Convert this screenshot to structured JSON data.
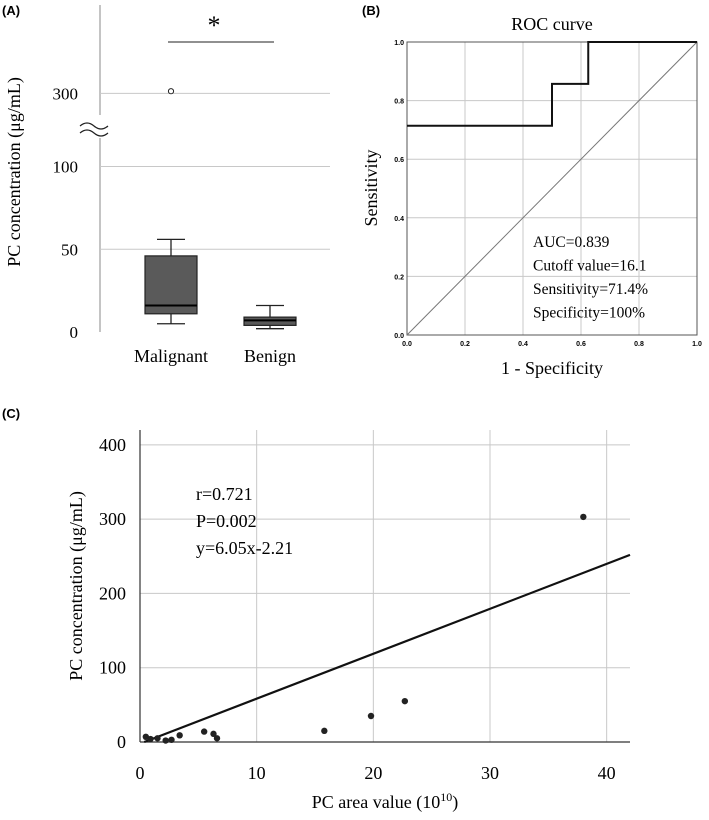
{
  "panel_labels": {
    "a": "(A)",
    "b": "(B)",
    "c": "(C)"
  },
  "chart_data": [
    {
      "id": "A",
      "type": "box",
      "ylabel": "PC concentration (μg/mL)",
      "ylim_lower": [
        0,
        110
      ],
      "ylim_upper": [
        285,
        380
      ],
      "axis_break": true,
      "ticks": [
        {
          "value": 0,
          "label": "0"
        },
        {
          "value": 50,
          "label": "50"
        },
        {
          "value": 100,
          "label": "100"
        },
        {
          "value": 300,
          "label": "300"
        }
      ],
      "categories": [
        "Malignant",
        "Benign"
      ],
      "boxes": [
        {
          "name": "Malignant",
          "whisker_low": 5,
          "q1": 11,
          "median": 16,
          "q3": 46,
          "whisker_high": 56,
          "outliers": [
            302
          ]
        },
        {
          "name": "Benign",
          "whisker_low": 2,
          "q1": 4,
          "median": 7,
          "q3": 9,
          "whisker_high": 16,
          "outliers": []
        }
      ],
      "significance": "*",
      "colors": {
        "box": "#5a5a5a",
        "grid": "#c8c8c8"
      }
    },
    {
      "id": "B",
      "type": "line",
      "title": "ROC curve",
      "xlabel": "1 - Specificity",
      "ylabel": "Sensitivity",
      "xlim": [
        0,
        1
      ],
      "ylim": [
        0,
        1
      ],
      "ticks": [
        "0.0",
        "0.2",
        "0.4",
        "0.6",
        "0.8",
        "1.0"
      ],
      "series": [
        {
          "name": "ROC",
          "points": [
            [
              0,
              0.714
            ],
            [
              0.5,
              0.714
            ],
            [
              0.5,
              0.857
            ],
            [
              0.625,
              0.857
            ],
            [
              0.625,
              1.0
            ],
            [
              1.0,
              1.0
            ]
          ]
        },
        {
          "name": "Reference",
          "points": [
            [
              0,
              0
            ],
            [
              1,
              1
            ]
          ]
        }
      ],
      "annotations": [
        "AUC=0.839",
        "Cutoff value=16.1",
        "Sensitivity=71.4%",
        "Specificity=100%"
      ]
    },
    {
      "id": "C",
      "type": "scatter",
      "xlabel": "PC area value (10",
      "xlabel_sup": "10",
      "xlabel_end": ")",
      "ylabel": "PC concentration (μg/mL)",
      "xlim": [
        0,
        42
      ],
      "ylim": [
        0,
        420
      ],
      "xticks": [
        "0",
        "10",
        "20",
        "30",
        "40"
      ],
      "yticks": [
        "0",
        "100",
        "200",
        "300",
        "400"
      ],
      "points": [
        [
          0.5,
          7
        ],
        [
          0.9,
          4
        ],
        [
          1.5,
          5
        ],
        [
          2.2,
          2
        ],
        [
          2.7,
          3
        ],
        [
          3.4,
          9
        ],
        [
          5.5,
          14
        ],
        [
          6.3,
          11
        ],
        [
          6.6,
          5
        ],
        [
          15.8,
          15
        ],
        [
          19.8,
          35
        ],
        [
          22.7,
          55
        ],
        [
          38,
          303
        ]
      ],
      "fit": {
        "slope": 6.05,
        "intercept": -2.21
      },
      "annotations": [
        "r=0.721",
        "P=0.002",
        "y=6.05x-2.21"
      ]
    }
  ]
}
